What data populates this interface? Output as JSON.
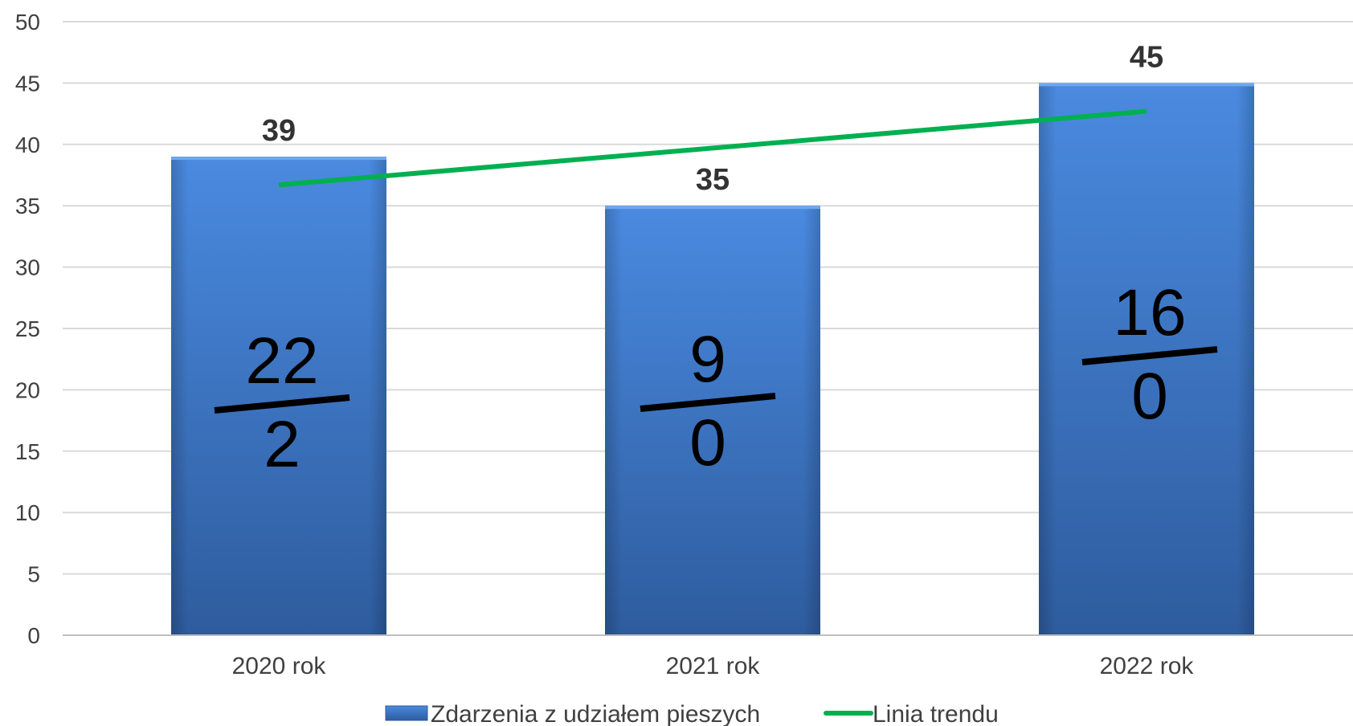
{
  "chart_data": {
    "type": "bar",
    "categories": [
      "2020 rok",
      "2021 rok",
      "2022 rok"
    ],
    "series": [
      {
        "name": "Zdarzenia z udziałem pieszych",
        "values": [
          39,
          35,
          45
        ],
        "color": "#3C78C8"
      }
    ],
    "trend": {
      "name": "Linia trendu",
      "values": [
        36.7,
        39.7,
        42.7
      ],
      "color": "#00B050"
    },
    "fractions": [
      {
        "numerator": "22",
        "denominator": "2"
      },
      {
        "numerator": "9",
        "denominator": "0"
      },
      {
        "numerator": "16",
        "denominator": "0"
      }
    ],
    "yticks": [
      "0",
      "5",
      "10",
      "15",
      "20",
      "25",
      "30",
      "35",
      "40",
      "45",
      "50"
    ],
    "ylim": [
      0,
      50
    ],
    "grid": true,
    "legend_position": "bottom"
  }
}
